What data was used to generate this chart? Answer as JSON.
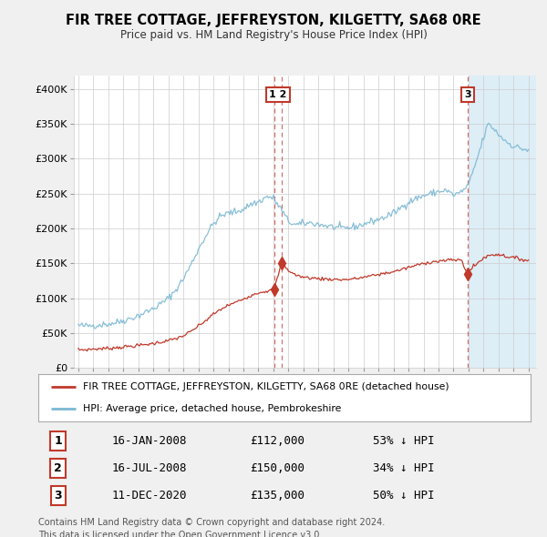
{
  "title": "FIR TREE COTTAGE, JEFFREYSTON, KILGETTY, SA68 0RE",
  "subtitle": "Price paid vs. HM Land Registry's House Price Index (HPI)",
  "hpi_color": "#7bb8d4",
  "price_color": "#c0392b",
  "vline_color": "#c0392b",
  "shade_color": "#ddeef7",
  "background_color": "#f0f0f0",
  "plot_bg_color": "#ffffff",
  "ylim": [
    0,
    420000
  ],
  "yticks": [
    0,
    50000,
    100000,
    150000,
    200000,
    250000,
    300000,
    350000,
    400000
  ],
  "ytick_labels": [
    "£0",
    "£50K",
    "£100K",
    "£150K",
    "£200K",
    "£250K",
    "£300K",
    "£350K",
    "£400K"
  ],
  "legend_label_price": "FIR TREE COTTAGE, JEFFREYSTON, KILGETTY, SA68 0RE (detached house)",
  "legend_label_hpi": "HPI: Average price, detached house, Pembrokeshire",
  "footer": "Contains HM Land Registry data © Crown copyright and database right 2024.\nThis data is licensed under the Open Government Licence v3.0.",
  "transactions": [
    {
      "num": 1,
      "date": "16-JAN-2008",
      "price": 112000,
      "pct": "53%",
      "x_year": 2008.04,
      "y_val": 112000
    },
    {
      "num": 2,
      "date": "16-JUL-2008",
      "price": 150000,
      "pct": "34%",
      "x_year": 2008.54,
      "y_val": 150000
    },
    {
      "num": 3,
      "date": "11-DEC-2020",
      "price": 135000,
      "pct": "50%",
      "x_year": 2020.95,
      "y_val": 135000
    }
  ],
  "shade_start": 2021.0,
  "shade_end": 2025.5,
  "xlim_start": 1994.7,
  "xlim_end": 2025.5
}
